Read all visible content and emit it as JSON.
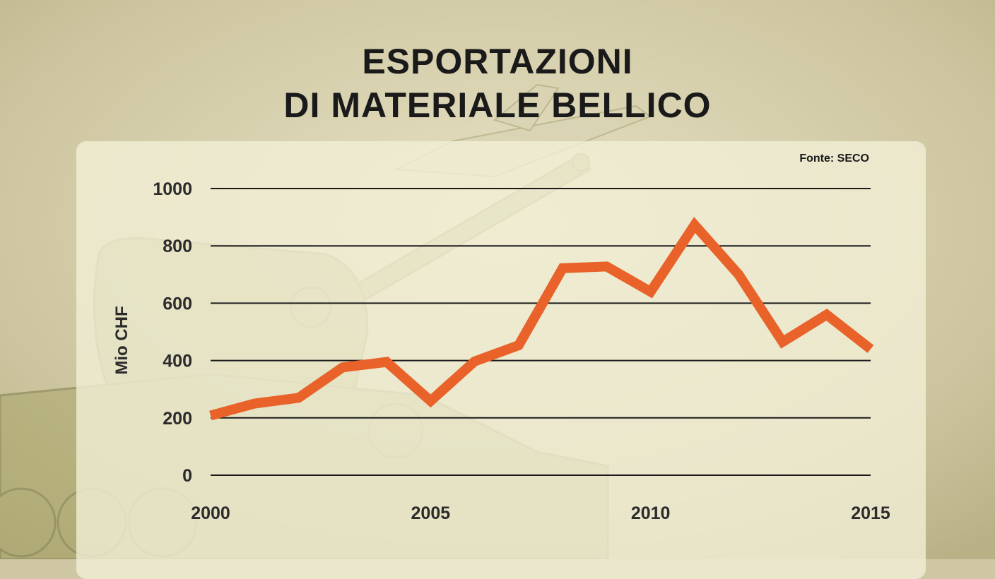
{
  "title_lines": [
    "ESPORTAZIONI",
    "DI MATERIALE BELLICO"
  ],
  "source": "Fonte: SECO",
  "colors": {
    "line": "#e8622a",
    "grid": "#1a1a1a",
    "panel": "#f1efd6",
    "background": "#cfc7a3",
    "illustration": "#a9a669"
  },
  "background_illustration": "tank-illustration",
  "chart_data": {
    "type": "line",
    "title": "ESPORTAZIONI DI MATERIALE BELLICO",
    "xlabel": "",
    "ylabel": "Mio CHF",
    "x": [
      2000,
      2001,
      2002,
      2003,
      2004,
      2005,
      2006,
      2007,
      2008,
      2009,
      2010,
      2011,
      2012,
      2013,
      2014,
      2015
    ],
    "series": [
      {
        "values": [
          208,
          250,
          270,
          376,
          395,
          259,
          397,
          453,
          722,
          728,
          640,
          873,
          700,
          465,
          560,
          440
        ]
      }
    ],
    "xlim": [
      2000,
      2015
    ],
    "ylim": [
      0,
      1000
    ],
    "yticks": [
      0,
      200,
      400,
      600,
      800,
      1000
    ],
    "xticks": [
      2000,
      2005,
      2010,
      2015
    ],
    "grid": "horizontal",
    "legend": "none"
  }
}
